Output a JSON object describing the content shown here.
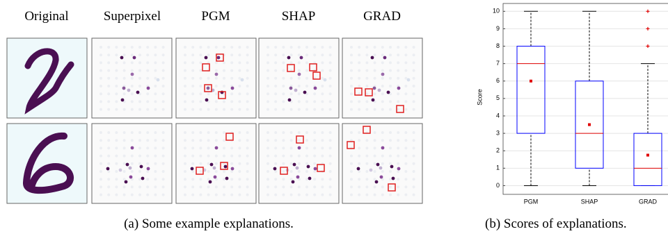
{
  "panel_a": {
    "column_headers": [
      "Original",
      "Superpixel",
      "PGM",
      "SHAP",
      "GRAD"
    ],
    "caption": "(a) Some example explanations."
  },
  "chart_data": {
    "type": "box",
    "caption": "(b) Scores of explanations.",
    "y_label": "Score",
    "categories": [
      "PGM",
      "SHAP",
      "GRAD"
    ],
    "whisker_low": [
      0,
      0,
      0
    ],
    "q1": [
      3,
      1,
      0
    ],
    "median": [
      7,
      3,
      1
    ],
    "q3": [
      8,
      6,
      3
    ],
    "whisker_high": [
      10,
      10,
      7
    ],
    "mean": [
      6,
      3.5,
      1.75
    ],
    "outliers": [
      [],
      [],
      [
        8,
        9,
        10
      ]
    ],
    "box_color": "#0000ff",
    "median_color": "#e00000",
    "mean_color": "#e00000",
    "ylim": [
      -0.5,
      10.45
    ],
    "yticks": [
      0,
      1,
      2,
      3,
      4,
      5,
      6,
      7,
      8,
      9,
      10
    ],
    "grid": true
  }
}
